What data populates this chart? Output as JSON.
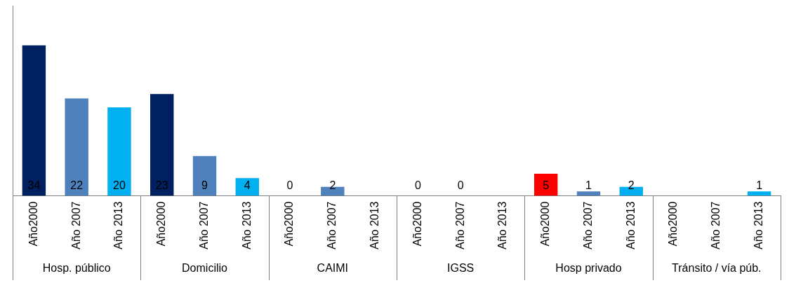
{
  "chart_data": {
    "type": "bar",
    "categories": [
      "Año2000",
      "Año 2007",
      "Año 2013",
      "Año2000",
      "Año 2007",
      "Año 2013",
      "Año2000",
      "Año 2007",
      "Año 2013",
      "Año2000",
      "Año 2007",
      "Año 2013",
      "Año2000",
      "Año 2007",
      "Año 2013",
      "Año2000",
      "Año 2007",
      "Año 2013"
    ],
    "values": [
      34,
      22,
      20,
      23,
      9,
      4,
      0,
      2,
      null,
      0,
      0,
      null,
      5,
      1,
      2,
      null,
      null,
      1
    ],
    "colors": [
      "#002060",
      "#4f81bd",
      "#00b0f0",
      "#002060",
      "#4f81bd",
      "#00b0f0",
      "#002060",
      "#4f81bd",
      "#00b0f0",
      "#002060",
      "#4f81bd",
      "#00b0f0",
      "#ff0000",
      "#4f81bd",
      "#00b0f0",
      "#002060",
      "#4f81bd",
      "#00b0f0"
    ],
    "ylim": [
      0,
      43
    ],
    "tick_labels": "x",
    "grid": false,
    "legend": false,
    "data_labels": true,
    "annotations": [
      "Hosp. público",
      "Domicilio",
      "CAIMI",
      "IGSS",
      "Hosp privado",
      "Tránsito / vía púb."
    ]
  }
}
